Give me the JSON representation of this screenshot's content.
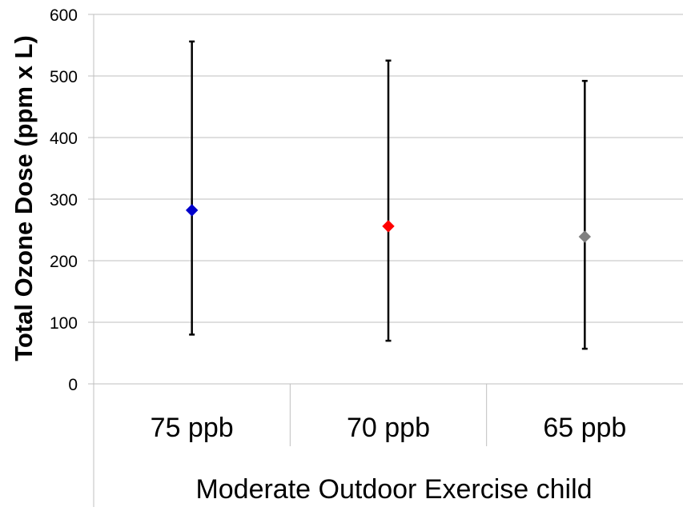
{
  "chart_data": {
    "type": "scatter",
    "title": "",
    "xlabel": "Moderate Outdoor Exercise child",
    "ylabel": "Total Ozone Dose (ppm x L)",
    "categories": [
      "75 ppb",
      "70 ppb",
      "65 ppb"
    ],
    "values": [
      282,
      256,
      239
    ],
    "error_low": [
      80,
      70,
      57
    ],
    "error_high": [
      556,
      525,
      492
    ],
    "marker_colors": [
      "#0000cc",
      "#ff0000",
      "#808080"
    ],
    "marker": "diamond",
    "ylim": [
      0,
      600
    ],
    "yticks": [
      0,
      100,
      200,
      300,
      400,
      500,
      600
    ],
    "grid": true
  }
}
